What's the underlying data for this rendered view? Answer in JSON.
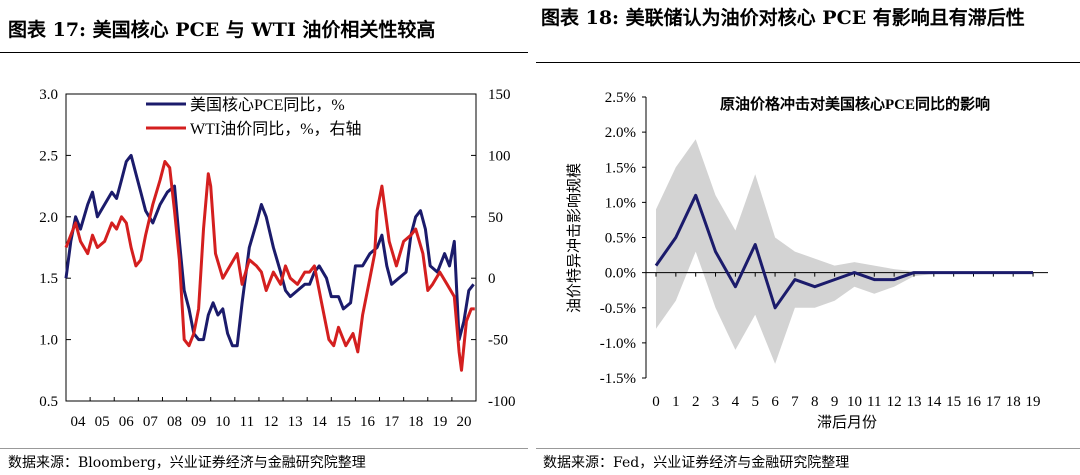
{
  "titles": {
    "left": "图表 17:  美国核心 PCE 与 WTI 油价相关性较高",
    "right": "图表 18:  美联储认为油价对核心 PCE 有影响且有滞后性"
  },
  "sources": {
    "left": "数据来源：Bloomberg，兴业证券经济与金融研究院整理",
    "right": "数据来源：Fed，兴业证券经济与金融研究院整理"
  },
  "colors": {
    "navy": "#1b1b6b",
    "red": "#d41f1f",
    "band": "#d3d3d3"
  },
  "chart_data": [
    {
      "type": "line",
      "title": "",
      "x_labels": [
        "04",
        "05",
        "06",
        "07",
        "08",
        "09",
        "10",
        "11",
        "12",
        "13",
        "14",
        "15",
        "16",
        "17",
        "18",
        "19",
        "20"
      ],
      "x_range": [
        2004,
        2021
      ],
      "y_left": {
        "ticks": [
          "0.5",
          "1.0",
          "1.5",
          "2.0",
          "2.5",
          "3.0"
        ],
        "ylim": [
          0.5,
          3.0
        ]
      },
      "y_right": {
        "ticks": [
          "-100",
          "-50",
          "0",
          "50",
          "100",
          "150"
        ],
        "ylim": [
          -100,
          150
        ]
      },
      "legend": [
        "美国核心PCE同比，%",
        "WTI油价同比，%，右轴"
      ],
      "series": [
        {
          "name": "美国核心PCE同比，%",
          "axis": "left",
          "color": "navy",
          "x": [
            2004.0,
            2004.2,
            2004.4,
            2004.6,
            2004.9,
            2005.1,
            2005.3,
            2005.6,
            2005.9,
            2006.1,
            2006.3,
            2006.5,
            2006.7,
            2006.9,
            2007.1,
            2007.3,
            2007.6,
            2007.9,
            2008.2,
            2008.5,
            2008.7,
            2008.9,
            2009.1,
            2009.3,
            2009.5,
            2009.7,
            2009.9,
            2010.1,
            2010.3,
            2010.5,
            2010.7,
            2010.9,
            2011.1,
            2011.3,
            2011.6,
            2011.9,
            2012.1,
            2012.3,
            2012.6,
            2012.9,
            2013.1,
            2013.3,
            2013.6,
            2013.9,
            2014.1,
            2014.3,
            2014.5,
            2014.8,
            2015.0,
            2015.3,
            2015.5,
            2015.8,
            2016.0,
            2016.3,
            2016.6,
            2016.9,
            2017.1,
            2017.3,
            2017.5,
            2017.8,
            2018.1,
            2018.3,
            2018.5,
            2018.7,
            2018.9,
            2019.1,
            2019.4,
            2019.7,
            2019.9,
            2020.1,
            2020.3,
            2020.5,
            2020.7,
            2020.9
          ],
          "values": [
            1.5,
            1.8,
            2.0,
            1.9,
            2.1,
            2.2,
            2.0,
            2.1,
            2.2,
            2.15,
            2.3,
            2.45,
            2.5,
            2.35,
            2.2,
            2.05,
            1.95,
            2.1,
            2.2,
            2.25,
            1.8,
            1.4,
            1.25,
            1.05,
            1.0,
            1.0,
            1.2,
            1.3,
            1.2,
            1.25,
            1.05,
            0.95,
            0.95,
            1.3,
            1.75,
            1.95,
            2.1,
            2.0,
            1.75,
            1.55,
            1.4,
            1.35,
            1.4,
            1.45,
            1.45,
            1.55,
            1.6,
            1.5,
            1.35,
            1.35,
            1.25,
            1.3,
            1.6,
            1.6,
            1.7,
            1.75,
            1.85,
            1.6,
            1.45,
            1.5,
            1.55,
            1.85,
            2.0,
            2.05,
            1.9,
            1.6,
            1.55,
            1.7,
            1.6,
            1.8,
            1.0,
            1.15,
            1.4,
            1.45
          ]
        },
        {
          "name": "WTI油价同比，%，右轴",
          "axis": "right",
          "color": "red",
          "x": [
            2004.0,
            2004.2,
            2004.4,
            2004.6,
            2004.9,
            2005.1,
            2005.3,
            2005.6,
            2005.9,
            2006.1,
            2006.3,
            2006.5,
            2006.7,
            2006.9,
            2007.1,
            2007.3,
            2007.6,
            2007.9,
            2008.1,
            2008.3,
            2008.5,
            2008.7,
            2008.9,
            2009.1,
            2009.3,
            2009.5,
            2009.7,
            2009.9,
            2010.0,
            2010.2,
            2010.5,
            2010.8,
            2011.1,
            2011.3,
            2011.6,
            2011.9,
            2012.1,
            2012.3,
            2012.6,
            2012.9,
            2013.1,
            2013.3,
            2013.6,
            2013.9,
            2014.1,
            2014.3,
            2014.6,
            2014.9,
            2015.1,
            2015.3,
            2015.6,
            2015.9,
            2016.1,
            2016.3,
            2016.6,
            2016.8,
            2016.9,
            2017.1,
            2017.4,
            2017.7,
            2018.0,
            2018.3,
            2018.5,
            2018.8,
            2019.0,
            2019.2,
            2019.5,
            2019.8,
            2020.1,
            2020.3,
            2020.4,
            2020.6,
            2020.8,
            2020.95
          ],
          "values": [
            25,
            35,
            45,
            30,
            20,
            35,
            25,
            30,
            45,
            40,
            50,
            45,
            25,
            10,
            15,
            35,
            60,
            80,
            95,
            90,
            55,
            15,
            -50,
            -55,
            -45,
            -25,
            40,
            85,
            75,
            20,
            0,
            10,
            20,
            -5,
            15,
            10,
            5,
            -10,
            5,
            -5,
            10,
            0,
            -5,
            5,
            5,
            10,
            -20,
            -50,
            -55,
            -40,
            -55,
            -45,
            -60,
            -30,
            0,
            20,
            55,
            75,
            30,
            10,
            30,
            35,
            40,
            20,
            -10,
            -5,
            5,
            -5,
            -15,
            -60,
            -75,
            -35,
            -25,
            -25
          ]
        }
      ]
    },
    {
      "type": "line",
      "title": "原油价格冲击对美国核心PCE同比的影响",
      "xlabel": "滞后月份",
      "ylabel": "油价特异冲击影响规模",
      "x": [
        0,
        1,
        2,
        3,
        4,
        5,
        6,
        7,
        8,
        9,
        10,
        11,
        12,
        13,
        14,
        15,
        16,
        17,
        18,
        19
      ],
      "y_ticks": [
        "-1.5%",
        "-1.0%",
        "-0.5%",
        "0.0%",
        "0.5%",
        "1.0%",
        "1.5%",
        "2.0%",
        "2.5%"
      ],
      "ylim": [
        -1.5,
        2.5
      ],
      "series": [
        {
          "name": "中值",
          "values": [
            0.1,
            0.5,
            1.1,
            0.3,
            -0.2,
            0.4,
            -0.5,
            -0.1,
            -0.2,
            -0.1,
            0.0,
            -0.1,
            -0.1,
            0.0,
            0.0,
            0.0,
            0.0,
            0.0,
            0.0,
            0.0
          ]
        },
        {
          "name": "上界",
          "values": [
            0.9,
            1.5,
            1.9,
            1.1,
            0.6,
            1.4,
            0.5,
            0.3,
            0.2,
            0.1,
            0.15,
            0.1,
            0.05,
            0.02,
            0.02,
            0.01,
            0.01,
            0.01,
            0.01,
            0.01
          ]
        },
        {
          "name": "下界",
          "values": [
            -0.8,
            -0.4,
            0.3,
            -0.5,
            -1.1,
            -0.6,
            -1.3,
            -0.5,
            -0.5,
            -0.4,
            -0.2,
            -0.3,
            -0.2,
            -0.05,
            -0.02,
            -0.01,
            -0.01,
            -0.01,
            -0.01,
            -0.01
          ]
        }
      ]
    }
  ]
}
